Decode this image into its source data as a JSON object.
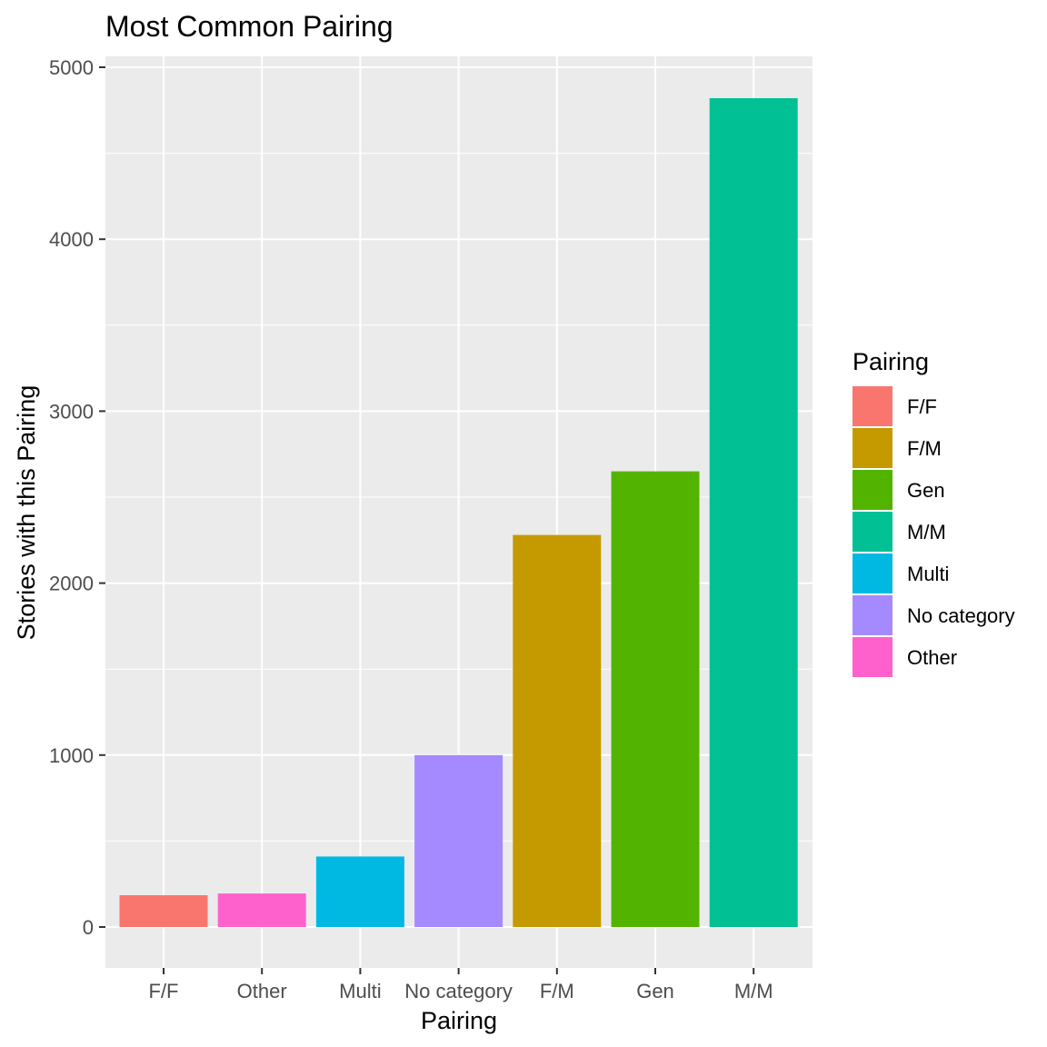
{
  "chart_data": {
    "type": "bar",
    "title": "Most Common Pairing",
    "xlabel": "Pairing",
    "ylabel": "Stories with this Pairing",
    "categories": [
      "F/F",
      "Other",
      "Multi",
      "No category",
      "F/M",
      "Gen",
      "M/M"
    ],
    "values": [
      185,
      195,
      410,
      1000,
      2280,
      2650,
      4820
    ],
    "colors": [
      "#F8766D",
      "#FF61CC",
      "#00B9E3",
      "#A58AFF",
      "#C49A00",
      "#53B400",
      "#00C094"
    ],
    "ylim": [
      0,
      5000
    ],
    "yticks": [
      0,
      1000,
      2000,
      3000,
      4000,
      5000
    ],
    "grid": true,
    "legend": {
      "title": "Pairing",
      "placement": "right",
      "items": [
        {
          "label": "F/F",
          "color": "#F8766D"
        },
        {
          "label": "F/M",
          "color": "#C49A00"
        },
        {
          "label": "Gen",
          "color": "#53B400"
        },
        {
          "label": "M/M",
          "color": "#00C094"
        },
        {
          "label": "Multi",
          "color": "#00B9E3"
        },
        {
          "label": "No category",
          "color": "#A58AFF"
        },
        {
          "label": "Other",
          "color": "#FF61CC"
        }
      ]
    }
  }
}
